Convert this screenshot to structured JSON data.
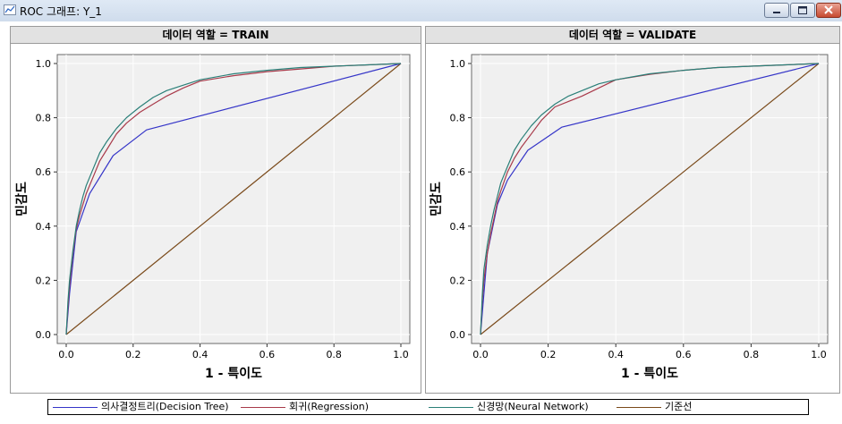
{
  "window": {
    "title": "ROC 그래프: Y_1"
  },
  "chart_data": [
    {
      "type": "line",
      "title": "데이터 역할 = TRAIN",
      "xlabel": "1 - 특이도",
      "ylabel": "민감도",
      "xlim": [
        0,
        1
      ],
      "ylim": [
        0,
        1
      ],
      "xticks": [
        "0.0",
        "0.2",
        "0.4",
        "0.6",
        "0.8",
        "1.0"
      ],
      "yticks": [
        "0.0",
        "0.2",
        "0.4",
        "0.6",
        "0.8",
        "1.0"
      ],
      "grid": true,
      "series": [
        {
          "name": "의사결정트리(Decision Tree)",
          "color": "#3535c8",
          "x": [
            0,
            0.01,
            0.03,
            0.07,
            0.14,
            0.24,
            1.0
          ],
          "y": [
            0,
            0.15,
            0.38,
            0.52,
            0.66,
            0.755,
            1.0
          ]
        },
        {
          "name": "회귀(Regression)",
          "color": "#a83a4a",
          "x": [
            0,
            0.005,
            0.01,
            0.02,
            0.03,
            0.04,
            0.05,
            0.06,
            0.08,
            0.1,
            0.12,
            0.15,
            0.18,
            0.22,
            0.26,
            0.3,
            0.35,
            0.4,
            0.5,
            0.6,
            0.7,
            0.8,
            0.9,
            1.0
          ],
          "y": [
            0,
            0.1,
            0.18,
            0.3,
            0.39,
            0.44,
            0.48,
            0.52,
            0.58,
            0.64,
            0.68,
            0.74,
            0.78,
            0.82,
            0.85,
            0.88,
            0.91,
            0.935,
            0.955,
            0.97,
            0.98,
            0.99,
            0.995,
            1.0
          ]
        },
        {
          "name": "신경망(Neural Network)",
          "color": "#2a7f78",
          "x": [
            0,
            0.005,
            0.01,
            0.02,
            0.03,
            0.04,
            0.05,
            0.06,
            0.08,
            0.1,
            0.12,
            0.15,
            0.18,
            0.22,
            0.26,
            0.3,
            0.35,
            0.4,
            0.5,
            0.6,
            0.7,
            0.8,
            0.9,
            1.0
          ],
          "y": [
            0,
            0.12,
            0.2,
            0.31,
            0.4,
            0.46,
            0.51,
            0.55,
            0.61,
            0.67,
            0.71,
            0.76,
            0.8,
            0.84,
            0.875,
            0.9,
            0.92,
            0.94,
            0.962,
            0.975,
            0.985,
            0.99,
            0.995,
            1.0
          ]
        },
        {
          "name": "기준선",
          "color": "#7a4a1a",
          "x": [
            0,
            1
          ],
          "y": [
            0,
            1
          ]
        }
      ]
    },
    {
      "type": "line",
      "title": "데이터 역할 = VALIDATE",
      "xlabel": "1 - 특이도",
      "ylabel": "민감도",
      "xlim": [
        0,
        1
      ],
      "ylim": [
        0,
        1
      ],
      "xticks": [
        "0.0",
        "0.2",
        "0.4",
        "0.6",
        "0.8",
        "1.0"
      ],
      "yticks": [
        "0.0",
        "0.2",
        "0.4",
        "0.6",
        "0.8",
        "1.0"
      ],
      "grid": true,
      "series": [
        {
          "name": "의사결정트리(Decision Tree)",
          "color": "#3535c8",
          "x": [
            0,
            0.02,
            0.05,
            0.08,
            0.14,
            0.24,
            1.0
          ],
          "y": [
            0,
            0.3,
            0.48,
            0.57,
            0.68,
            0.765,
            1.0
          ]
        },
        {
          "name": "회귀(Regression)",
          "color": "#a83a4a",
          "x": [
            0,
            0.005,
            0.01,
            0.02,
            0.03,
            0.04,
            0.05,
            0.06,
            0.08,
            0.1,
            0.12,
            0.15,
            0.18,
            0.22,
            0.26,
            0.3,
            0.35,
            0.4,
            0.5,
            0.6,
            0.7,
            0.8,
            0.9,
            1.0
          ],
          "y": [
            0,
            0.12,
            0.2,
            0.3,
            0.37,
            0.43,
            0.49,
            0.53,
            0.6,
            0.65,
            0.69,
            0.74,
            0.79,
            0.84,
            0.86,
            0.88,
            0.91,
            0.94,
            0.96,
            0.975,
            0.985,
            0.99,
            0.995,
            1.0
          ]
        },
        {
          "name": "신경망(Neural Network)",
          "color": "#2a7f78",
          "x": [
            0,
            0.005,
            0.01,
            0.02,
            0.03,
            0.04,
            0.05,
            0.06,
            0.08,
            0.1,
            0.12,
            0.15,
            0.18,
            0.22,
            0.26,
            0.3,
            0.35,
            0.4,
            0.5,
            0.6,
            0.7,
            0.8,
            0.9,
            1.0
          ],
          "y": [
            0,
            0.14,
            0.24,
            0.33,
            0.4,
            0.46,
            0.51,
            0.56,
            0.62,
            0.68,
            0.72,
            0.77,
            0.81,
            0.85,
            0.88,
            0.9,
            0.925,
            0.94,
            0.962,
            0.975,
            0.985,
            0.99,
            0.995,
            1.0
          ]
        },
        {
          "name": "기준선",
          "color": "#7a4a1a",
          "x": [
            0,
            1
          ],
          "y": [
            0,
            1
          ]
        }
      ]
    }
  ]
}
